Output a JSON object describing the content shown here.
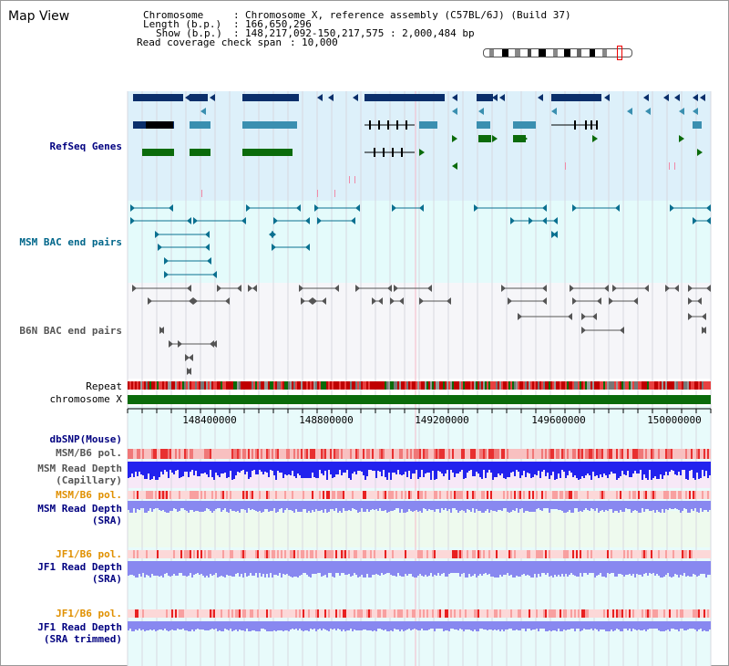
{
  "title": "Map View",
  "info": {
    "chromosome_label": "Chromosome",
    "chromosome_value": "Chromosome X, reference assembly (C57BL/6J) (Build 37)",
    "length_label": "Length (b.p.)",
    "length_value": "166,650,296",
    "show_label": "Show (b.p.)",
    "show_value": "148,217,092-150,217,575 : 2,000,484 bp",
    "coverage_label": "Read coverage check span",
    "coverage_value": "10,000"
  },
  "tracks": {
    "refseq": "RefSeq Genes",
    "msm_bac": "MSM BAC end pairs",
    "b6n_bac": "B6N BAC end pairs",
    "repeat": "Repeat",
    "chromosome": "chromosome X",
    "dbsnp": "dbSNP(Mouse)",
    "msm_b6_pol_1": "MSM/B6 pol.",
    "msm_read_depth_cap_1": "MSM Read Depth",
    "msm_read_depth_cap_2": "(Capillary)",
    "msm_b6_pol_2": "MSM/B6 pol.",
    "msm_read_depth_sra_1": "MSM Read Depth",
    "msm_read_depth_sra_2": "(SRA)",
    "jf1_b6_pol_1": "JF1/B6 pol.",
    "jf1_read_depth_sra_1": "JF1 Read Depth",
    "jf1_read_depth_sra_2": "(SRA)",
    "jf1_b6_pol_2": "JF1/B6 pol.",
    "jf1_read_depth_trim_1": "JF1 Read Depth",
    "jf1_read_depth_trim_2": "(SRA trimmed)"
  },
  "axis": {
    "ticks": [
      "148400000",
      "148800000",
      "149200000",
      "149600000",
      "150000000"
    ]
  },
  "colors": {
    "refseq_bg": "#ddf0fa",
    "msm_bg": "#e4fbfb",
    "b6n_bg": "#f5f5f8",
    "dark_navy": "#0a2f6b",
    "mid_blue": "#3a8fb0",
    "green": "#0b6b0b",
    "teal_line": "#0a7090",
    "gray_line": "#555555",
    "chrom_green": "#0b6b0b",
    "depth_blue": "#2222ee",
    "depth_lavender": "#8888f0"
  }
}
